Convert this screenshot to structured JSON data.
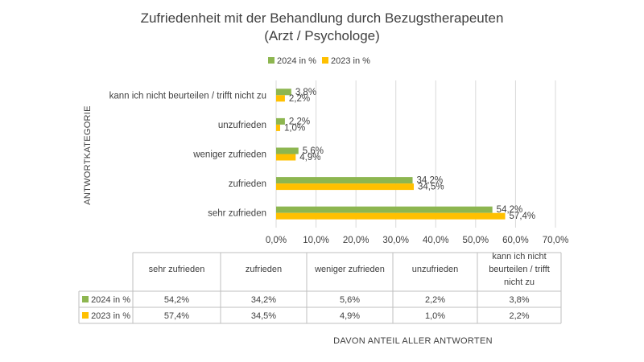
{
  "chart_data": {
    "type": "bar",
    "orientation": "horizontal",
    "title": "Zufriedenheit mit der Behandlung durch Bezugstherapeuten",
    "subtitle": "(Arzt / Psychologe)",
    "ylabel": "ANTWORTKATEGORIE",
    "xlabel": "DAVON ANTEIL ALLER ANTWORTEN",
    "categories": [
      "sehr zufrieden",
      "zufrieden",
      "weniger zufrieden",
      "unzufrieden",
      "kann ich nicht beurteilen / trifft nicht zu"
    ],
    "series": [
      {
        "name": "2024 in %",
        "color": "#8db650",
        "values": [
          54.2,
          34.2,
          5.6,
          2.2,
          3.8
        ],
        "labels": [
          "54,2%",
          "34,2%",
          "5,6%",
          "2,2%",
          "3,8%"
        ]
      },
      {
        "name": "2023 in %",
        "color": "#ffc000",
        "values": [
          57.4,
          34.5,
          4.9,
          1.0,
          2.2
        ],
        "labels": [
          "57,4%",
          "34,5%",
          "4,9%",
          "1,0%",
          "2,2%"
        ]
      }
    ],
    "xlim": [
      0,
      70
    ],
    "xticks": [
      0,
      10,
      20,
      30,
      40,
      50,
      60,
      70
    ],
    "xtick_labels": [
      "0,0%",
      "10,0%",
      "20,0%",
      "30,0%",
      "40,0%",
      "50,0%",
      "60,0%",
      "70,0%"
    ],
    "grid": true,
    "legend": "top",
    "data_table": {
      "headers": [
        "sehr zufrieden",
        "zufrieden",
        "weniger zufrieden",
        "unzufrieden",
        "kann ich nicht beurteilen / trifft nicht zu"
      ],
      "header_lines": [
        [
          "sehr zufrieden"
        ],
        [
          "zufrieden"
        ],
        [
          "weniger zufrieden"
        ],
        [
          "unzufrieden"
        ],
        [
          "kann ich nicht",
          "beurteilen / trifft",
          "nicht zu"
        ]
      ],
      "rows": [
        {
          "name": "2024 in %",
          "color": "#8db650",
          "cells": [
            "54,2%",
            "34,2%",
            "5,6%",
            "2,2%",
            "3,8%"
          ]
        },
        {
          "name": "2023 in %",
          "color": "#ffc000",
          "cells": [
            "57,4%",
            "34,5%",
            "4,9%",
            "1,0%",
            "2,2%"
          ]
        }
      ]
    }
  }
}
